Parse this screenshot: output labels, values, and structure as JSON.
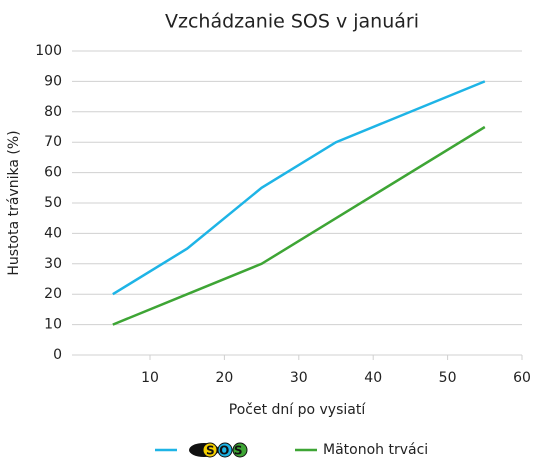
{
  "chart_data": {
    "type": "line",
    "title": "Vzchádzanie SOS v januári",
    "x_label": "Počet dní po vysiatí",
    "y_label": "Hustota trávnika (%)",
    "x": [
      5,
      15,
      25,
      35,
      55
    ],
    "series": [
      {
        "name": "SOS",
        "color": "#1eb4e6",
        "values": [
          20,
          35,
          55,
          70,
          90
        ]
      },
      {
        "name": "Mätonoh trváci",
        "color": "#3ea535",
        "values": [
          10,
          20,
          30,
          45,
          75
        ]
      }
    ],
    "xlim": [
      0,
      60
    ],
    "xticks": [
      10,
      20,
      30,
      40,
      50,
      60
    ],
    "ylim": [
      0,
      100
    ],
    "yticks": [
      0,
      10,
      20,
      30,
      40,
      50,
      60,
      70,
      80,
      90,
      100
    ],
    "grid": true,
    "legend": "bottom"
  }
}
